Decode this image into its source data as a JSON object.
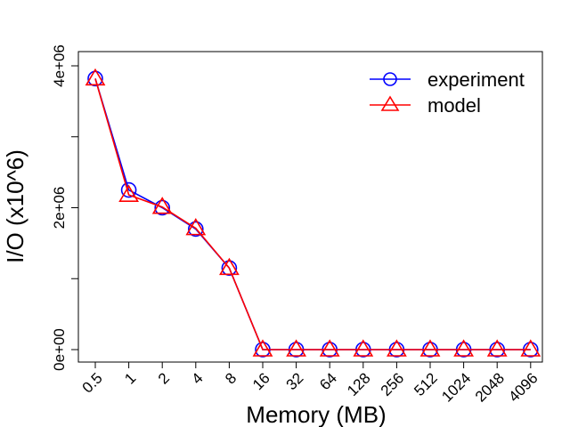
{
  "chart_data": {
    "type": "line",
    "xlabel": "Memory (MB)",
    "ylabel": "I/O (x10^6)",
    "categories": [
      "0.5",
      "1",
      "2",
      "4",
      "8",
      "16",
      "32",
      "64",
      "128",
      "256",
      "512",
      "1024",
      "2048",
      "4096"
    ],
    "yticks": [
      0,
      1000000,
      2000000,
      3000000,
      4000000
    ],
    "ytick_labels": [
      "0e+00",
      "",
      "2e+06",
      "",
      "4e+06"
    ],
    "ylim": [
      -200000,
      4350000
    ],
    "legend_position": "top-right",
    "grid": false,
    "series": [
      {
        "name": "experiment",
        "color": "#0000ff",
        "marker": "circle",
        "values": [
          3820000,
          2250000,
          2000000,
          1700000,
          1150000,
          0,
          0,
          0,
          0,
          0,
          0,
          0,
          0,
          0
        ]
      },
      {
        "name": "model",
        "color": "#ff0000",
        "marker": "triangle",
        "values": [
          3820000,
          2180000,
          2010000,
          1710000,
          1150000,
          0,
          0,
          0,
          0,
          0,
          0,
          0,
          0,
          0
        ]
      }
    ]
  }
}
